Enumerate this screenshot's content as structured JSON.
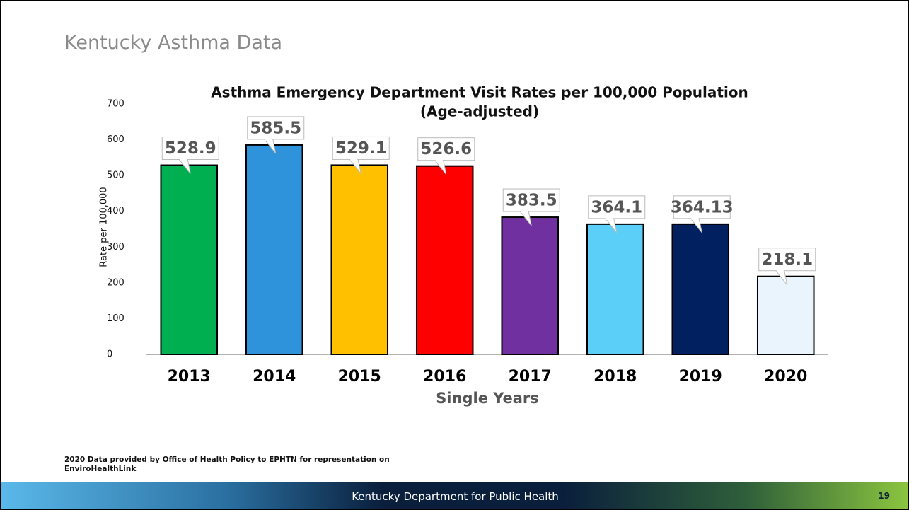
{
  "slide_title": "Kentucky Asthma Data",
  "chart_data": {
    "type": "bar",
    "title": "Asthma Emergency Department Visit Rates per 100,000 Population",
    "subtitle": "(Age-adjusted)",
    "x_label": "Single Years",
    "y_label": "Rate per 100,000",
    "categories": [
      "2013",
      "2014",
      "2015",
      "2016",
      "2017",
      "2018",
      "2019",
      "2020"
    ],
    "values": [
      528.9,
      585.5,
      529.1,
      526.6,
      383.5,
      364.1,
      364.13,
      218.1
    ],
    "colors": [
      "#00b050",
      "#2e93db",
      "#ffc000",
      "#ff0000",
      "#7030a0",
      "#5bcff8",
      "#002060",
      "#eaf4fd"
    ],
    "ylim": [
      0,
      700
    ],
    "yticks": [
      0,
      100,
      200,
      300,
      400,
      500,
      600,
      700
    ],
    "grid": false
  },
  "footnote": "2020 Data provided by Office of Health Policy to EPHTN for representation on EnviroHealthLink",
  "footer": {
    "text": "Kentucky Department for Public Health",
    "page_number": "19"
  }
}
